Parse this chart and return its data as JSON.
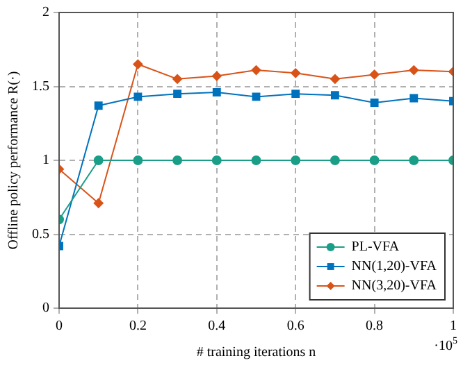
{
  "chart_data": {
    "type": "line",
    "xlabel": "# training iterations n",
    "ylabel": "Offline policy performance R(·)",
    "x": [
      0,
      0.1,
      0.2,
      0.3,
      0.4,
      0.5,
      0.6,
      0.7,
      0.8,
      0.9,
      1
    ],
    "series": [
      {
        "name": "PL-VFA",
        "color": "#1a9e87",
        "marker": "circle",
        "values": [
          0.6,
          1,
          1,
          1,
          1,
          1,
          1,
          1,
          1,
          1,
          1
        ]
      },
      {
        "name": "NN(1,20)-VFA",
        "color": "#0072bd",
        "marker": "square",
        "values": [
          0.42,
          1.37,
          1.43,
          1.45,
          1.46,
          1.43,
          1.45,
          1.44,
          1.39,
          1.42,
          1.4
        ]
      },
      {
        "name": "NN(3,20)-VFA",
        "color": "#d95319",
        "marker": "diamond",
        "values": [
          0.94,
          0.71,
          1.65,
          1.55,
          1.57,
          1.61,
          1.59,
          1.55,
          1.58,
          1.61,
          1.6
        ]
      }
    ],
    "xlim": [
      0,
      1
    ],
    "xticks": [
      0,
      0.2,
      0.4,
      0.6,
      0.8,
      1
    ],
    "ylim": [
      0,
      2
    ],
    "yticks": [
      0,
      0.5,
      1,
      1.5,
      2
    ],
    "grid": true,
    "legend": "bottom right",
    "line_style": "solid",
    "annotations": [
      "·10$^{5}$"
    ]
  }
}
